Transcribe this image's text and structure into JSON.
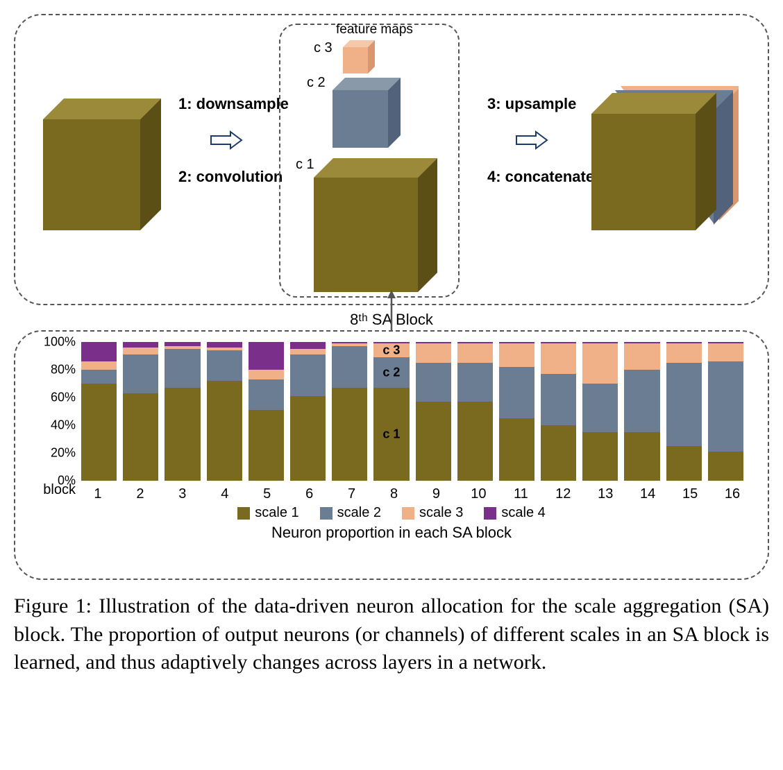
{
  "colors": {
    "scale1": "#7a6a1f",
    "scale1_dark": "#5c4f16",
    "scale1_top": "#9a8a3a",
    "scale2": "#6b7d92",
    "scale2_dark": "#52627a",
    "scale2_top": "#8a99aa",
    "scale3": "#f0b088",
    "scale3_dark": "#d8976e",
    "scale3_top": "#f5c8aa",
    "scale4": "#7a2f8a",
    "border_dash": "#555555",
    "text": "#000000",
    "bg": "#ffffff"
  },
  "top_diagram": {
    "feature_maps_label": "feature maps",
    "c1": "c 1",
    "c2": "c 2",
    "c3": "c 3",
    "step1": "1: downsample",
    "step2": "2: convolution",
    "step3": "3: upsample",
    "step4": "4: concatenate"
  },
  "block_title": "8ᵗʰ SA Block",
  "chart": {
    "type": "stacked-bar",
    "y_label_suffix": "%",
    "y_ticks": [
      0,
      20,
      40,
      60,
      80,
      100
    ],
    "x_title": "block",
    "x_labels": [
      "1",
      "2",
      "3",
      "4",
      "5",
      "6",
      "7",
      "8",
      "9",
      "10",
      "11",
      "12",
      "13",
      "14",
      "15",
      "16"
    ],
    "series": [
      "scale 1",
      "scale 2",
      "scale 3",
      "scale 4"
    ],
    "series_colors": [
      "#7a6a1f",
      "#6b7d92",
      "#f0b088",
      "#7a2f8a"
    ],
    "data": [
      [
        70,
        10,
        6,
        14
      ],
      [
        63,
        28,
        5,
        4
      ],
      [
        67,
        28,
        2,
        3
      ],
      [
        72,
        22,
        2,
        4
      ],
      [
        51,
        22,
        7,
        20
      ],
      [
        61,
        30,
        4,
        5
      ],
      [
        67,
        30,
        2,
        1
      ],
      [
        67,
        22,
        10,
        1
      ],
      [
        57,
        28,
        14,
        1
      ],
      [
        57,
        28,
        14,
        1
      ],
      [
        45,
        37,
        17,
        1
      ],
      [
        40,
        37,
        22,
        1
      ],
      [
        35,
        35,
        29,
        1
      ],
      [
        35,
        45,
        19,
        1
      ],
      [
        25,
        60,
        14,
        1
      ],
      [
        21,
        65,
        13,
        1
      ]
    ],
    "inner_labels": {
      "bar_index": 7,
      "c1": "c 1",
      "c2": "c 2",
      "c3": "c 3"
    },
    "bottom_caption": "Neuron proportion in each SA block"
  },
  "figure_caption": "Figure 1: Illustration of the data-driven neuron allocation for the scale aggregation (SA) block. The proportion of output neurons (or channels) of different scales in an SA block is learned, and thus adaptively changes across layers in a network."
}
